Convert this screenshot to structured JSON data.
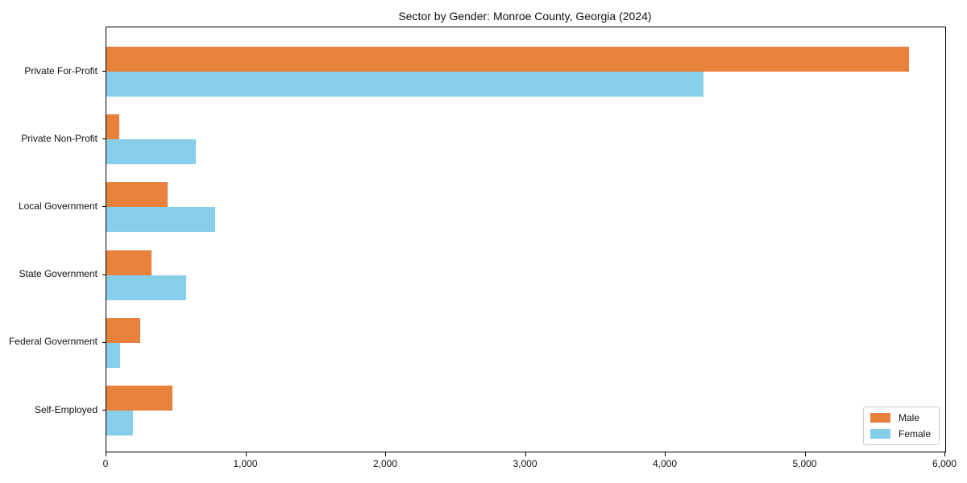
{
  "title": "Sector by Gender: Monroe County, Georgia (2024)",
  "chart_data": {
    "type": "bar",
    "orientation": "horizontal",
    "title": "Sector by Gender: Monroe County, Georgia (2024)",
    "xlabel": "",
    "ylabel": "",
    "categories": [
      "Private For-Profit",
      "Private Non-Profit",
      "Local Government",
      "State Government",
      "Federal Government",
      "Self-Employed"
    ],
    "series": [
      {
        "name": "Male",
        "color": "#E8813C",
        "values": [
          5740,
          90,
          440,
          320,
          240,
          470
        ]
      },
      {
        "name": "Female",
        "color": "#87CEEB",
        "values": [
          4270,
          640,
          780,
          570,
          100,
          190
        ]
      }
    ],
    "xlim": [
      0,
      6000
    ],
    "xticks": [
      0,
      1000,
      2000,
      3000,
      4000,
      5000,
      6000
    ],
    "xtick_labels": [
      "0",
      "1,000",
      "2,000",
      "3,000",
      "4,000",
      "5,000",
      "6,000"
    ],
    "grid": false,
    "legend_position": "lower right",
    "axis_color": "#000000",
    "legend_border_color": "#cccccc"
  }
}
